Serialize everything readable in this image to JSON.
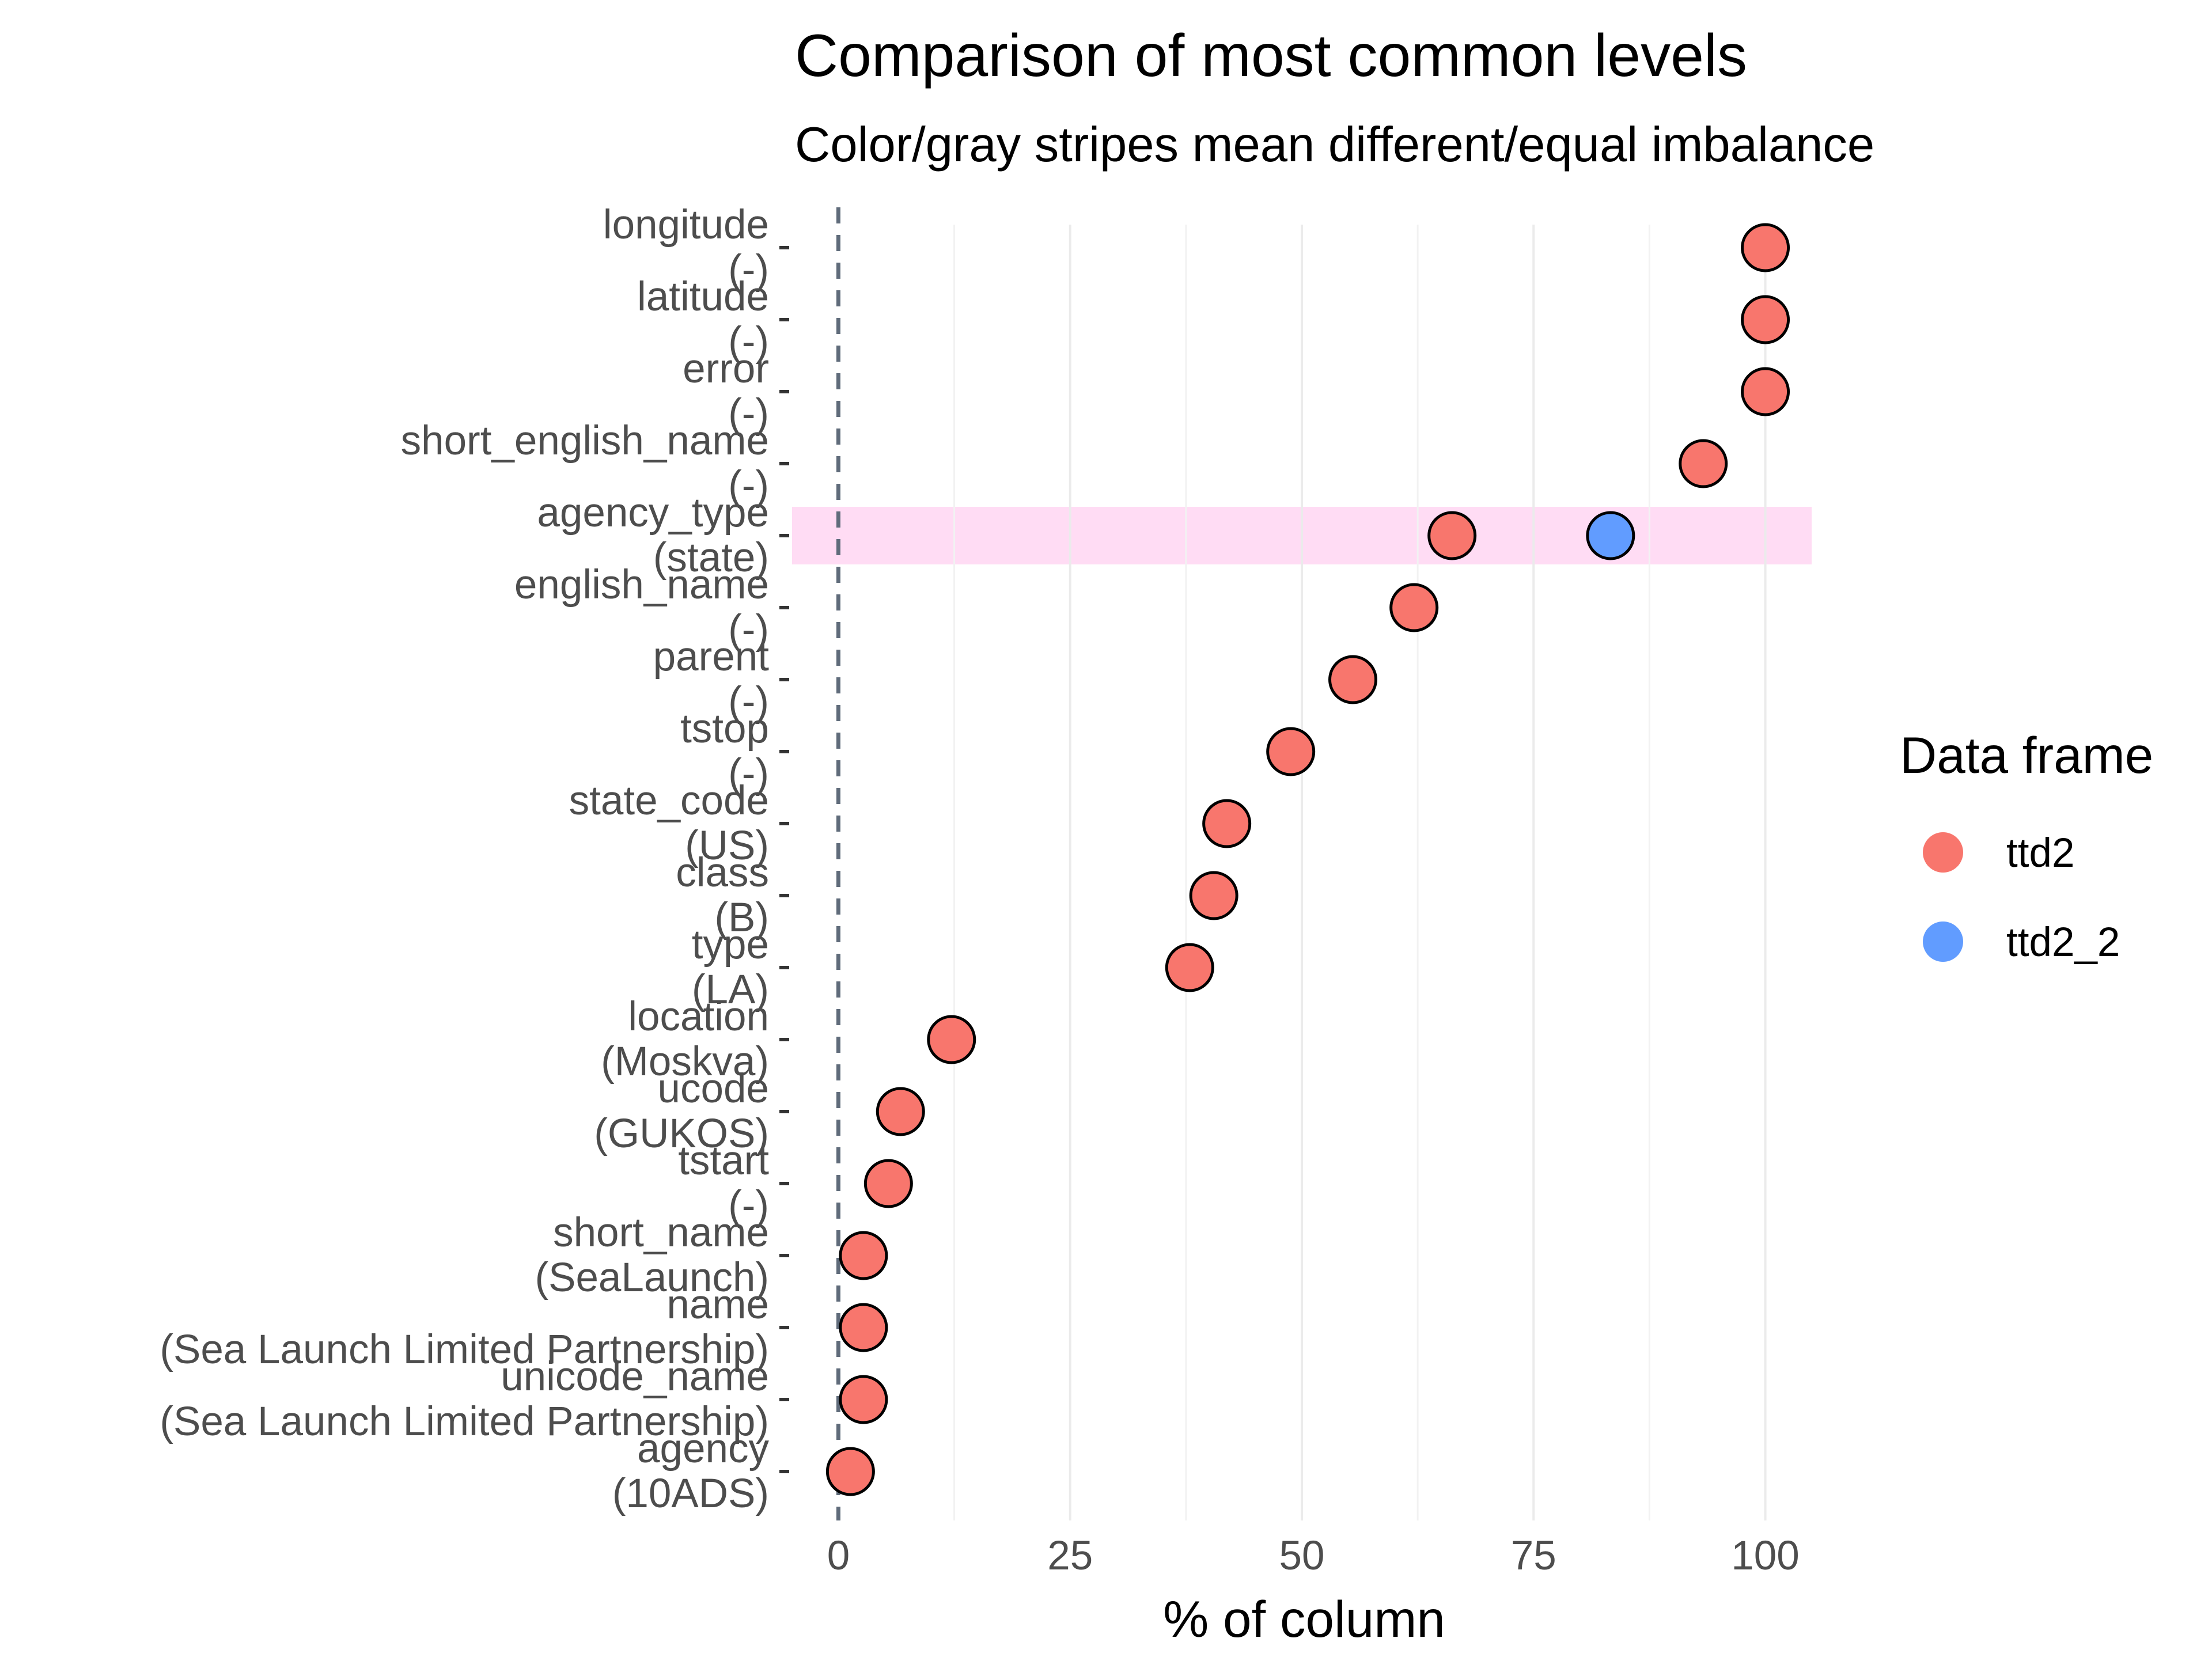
{
  "chart_data": {
    "type": "scatter",
    "title": "Comparison of most common levels",
    "subtitle": "Color/gray stripes mean different/equal imbalance",
    "xlabel": "% of column",
    "ylabel": "",
    "xlim": [
      -5,
      105
    ],
    "x_ticks": [
      "0",
      "25",
      "50",
      "75",
      "100"
    ],
    "grid": "vertical",
    "legend": {
      "title": "Data frame",
      "position": "right",
      "entries": [
        {
          "name": "ttd2",
          "color": "#F8766D"
        },
        {
          "name": "ttd2_2",
          "color": "#619CFF"
        }
      ]
    },
    "reference_line": {
      "x": 0,
      "style": "dashed",
      "color": "#5f6b7a"
    },
    "stripe_color": "#ffdcf4",
    "rows": [
      {
        "variable": "longitude",
        "level": "(-)",
        "values": {
          "ttd2": 100
        },
        "stripe": false
      },
      {
        "variable": "latitude",
        "level": "(-)",
        "values": {
          "ttd2": 100
        },
        "stripe": false
      },
      {
        "variable": "error",
        "level": "(-)",
        "values": {
          "ttd2": 100
        },
        "stripe": false
      },
      {
        "variable": "short_english_name",
        "level": "(-)",
        "values": {
          "ttd2": 93.3
        },
        "stripe": false
      },
      {
        "variable": "agency_type",
        "level": "(state)",
        "values": {
          "ttd2": 66.2,
          "ttd2_2": 83.3
        },
        "stripe": true
      },
      {
        "variable": "english_name",
        "level": "(-)",
        "values": {
          "ttd2": 62.1
        },
        "stripe": false
      },
      {
        "variable": "parent",
        "level": "(-)",
        "values": {
          "ttd2": 55.5
        },
        "stripe": false
      },
      {
        "variable": "tstop",
        "level": "(-)",
        "values": {
          "ttd2": 48.8
        },
        "stripe": false
      },
      {
        "variable": "state_code",
        "level": "(US)",
        "values": {
          "ttd2": 41.9
        },
        "stripe": false
      },
      {
        "variable": "class",
        "level": "(B)",
        "values": {
          "ttd2": 40.5
        },
        "stripe": false
      },
      {
        "variable": "type",
        "level": "(LA)",
        "values": {
          "ttd2": 37.9
        },
        "stripe": false
      },
      {
        "variable": "location",
        "level": "(Moskva)",
        "values": {
          "ttd2": 12.2
        },
        "stripe": false
      },
      {
        "variable": "ucode",
        "level": "(GUKOS)",
        "values": {
          "ttd2": 6.7
        },
        "stripe": false
      },
      {
        "variable": "tstart",
        "level": "(-)",
        "values": {
          "ttd2": 5.4
        },
        "stripe": false
      },
      {
        "variable": "short_name",
        "level": "(SeaLaunch)",
        "values": {
          "ttd2": 2.7
        },
        "stripe": false
      },
      {
        "variable": "name",
        "level": "(Sea Launch Limited Partnership)",
        "values": {
          "ttd2": 2.7
        },
        "stripe": false
      },
      {
        "variable": "unicode_name",
        "level": "(Sea Launch Limited Partnership)",
        "values": {
          "ttd2": 2.7
        },
        "stripe": false
      },
      {
        "variable": "agency",
        "level": "(10ADS)",
        "values": {
          "ttd2": 1.3
        },
        "stripe": false
      }
    ]
  }
}
